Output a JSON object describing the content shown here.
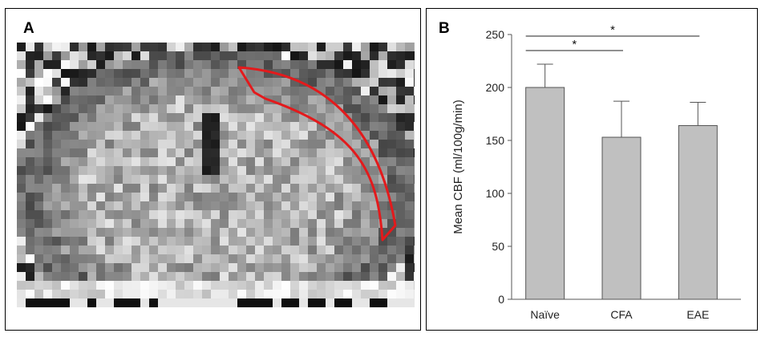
{
  "panel_a": {
    "label": "A",
    "roi_outline_color": "#e31a1c"
  },
  "panel_b": {
    "label": "B"
  },
  "chart_data": {
    "type": "bar",
    "categories": [
      "Naïve",
      "CFA",
      "EAE"
    ],
    "values": [
      200,
      153,
      164
    ],
    "error_bars": [
      22,
      34,
      22
    ],
    "ylabel": "Mean CBF (ml/100g/min)",
    "xlabel": "",
    "ylim": [
      0,
      250
    ],
    "yticks": [
      0,
      50,
      100,
      150,
      200,
      250
    ],
    "bar_color": "#c0c0c0",
    "significance": [
      {
        "from": "Naïve",
        "to": "CFA",
        "label": "*"
      },
      {
        "from": "Naïve",
        "to": "EAE",
        "label": "*"
      }
    ],
    "grid": false
  }
}
